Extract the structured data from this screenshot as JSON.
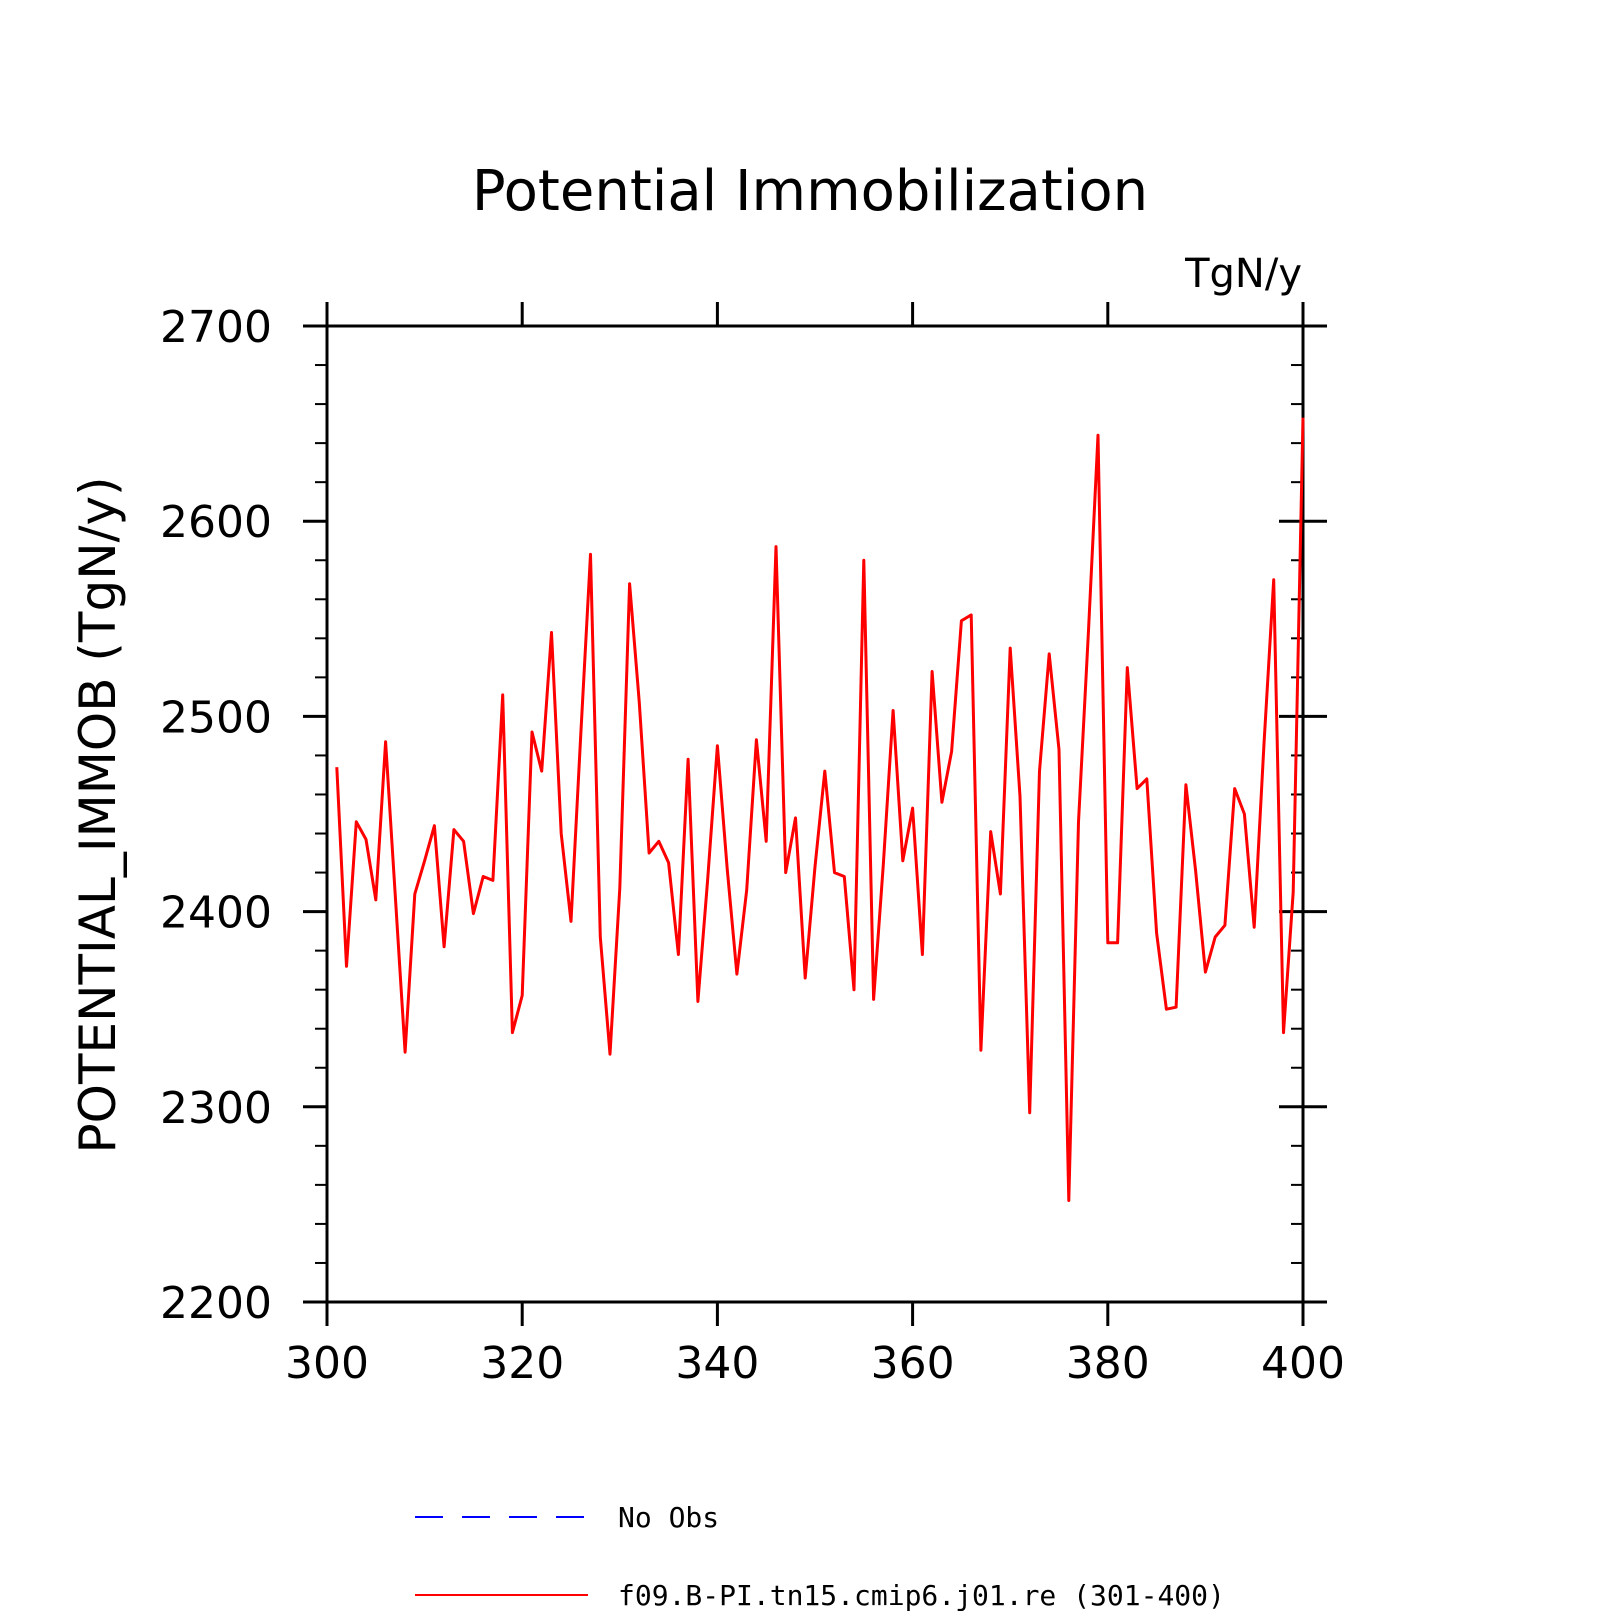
{
  "chart_data": {
    "type": "line",
    "title": "Potential Immobilization",
    "units_label": "TgN/y",
    "ylabel": "POTENTIAL_IMMOB  (TgN/y)",
    "xlabel": "",
    "xlim": [
      300,
      400
    ],
    "ylim": [
      2200,
      2700
    ],
    "x_ticks": [
      300,
      320,
      340,
      360,
      380,
      400
    ],
    "y_ticks": [
      2200,
      2300,
      2400,
      2500,
      2600,
      2700
    ],
    "x_tick_labels": [
      "300",
      "320",
      "340",
      "360",
      "380",
      "400"
    ],
    "y_tick_labels": [
      "2200",
      "2300",
      "2400",
      "2500",
      "2600",
      "2700"
    ],
    "grid": false,
    "legend_placement": "bottom",
    "legend": [
      {
        "label": "No Obs",
        "color": "#0000ff",
        "style": "dashed"
      },
      {
        "label": "f09.B-PI.tn15.cmip6.j01.re (301-400)",
        "color": "#ff0000",
        "style": "solid"
      }
    ],
    "series": [
      {
        "name": "f09.B-PI.tn15.cmip6.j01.re (301-400)",
        "color": "#ff0000",
        "x": [
          301,
          302,
          303,
          304,
          305,
          306,
          307,
          308,
          309,
          310,
          311,
          312,
          313,
          314,
          315,
          316,
          317,
          318,
          319,
          320,
          321,
          322,
          323,
          324,
          325,
          326,
          327,
          328,
          329,
          330,
          331,
          332,
          333,
          334,
          335,
          336,
          337,
          338,
          339,
          340,
          341,
          342,
          343,
          344,
          345,
          346,
          347,
          348,
          349,
          350,
          351,
          352,
          353,
          354,
          355,
          356,
          357,
          358,
          359,
          360,
          361,
          362,
          363,
          364,
          365,
          366,
          367,
          368,
          369,
          370,
          371,
          372,
          373,
          374,
          375,
          376,
          377,
          378,
          379,
          380,
          381,
          382,
          383,
          384,
          385,
          386,
          387,
          388,
          389,
          390,
          391,
          392,
          393,
          394,
          395,
          396,
          397,
          398,
          399,
          400
        ],
        "y": [
          2474,
          2372,
          2446,
          2437,
          2406,
          2487,
          2408,
          2328,
          2409,
          2426,
          2444,
          2382,
          2442,
          2436,
          2399,
          2418,
          2416,
          2511,
          2338,
          2357,
          2492,
          2472,
          2543,
          2440,
          2395,
          2491,
          2583,
          2387,
          2327,
          2412,
          2568,
          2507,
          2430,
          2436,
          2425,
          2378,
          2478,
          2354,
          2416,
          2485,
          2422,
          2368,
          2411,
          2488,
          2436,
          2587,
          2420,
          2448,
          2366,
          2423,
          2472,
          2420,
          2418,
          2360,
          2580,
          2355,
          2424,
          2503,
          2426,
          2453,
          2378,
          2523,
          2456,
          2482,
          2549,
          2552,
          2329,
          2441,
          2409,
          2535,
          2459,
          2297,
          2472,
          2532,
          2483,
          2252,
          2446,
          2542,
          2644,
          2384,
          2384,
          2525,
          2463,
          2468,
          2389,
          2350,
          2351,
          2465,
          2421,
          2369,
          2387,
          2393,
          2463,
          2450,
          2392,
          2486,
          2570,
          2338,
          2410,
          2653
        ]
      }
    ]
  }
}
